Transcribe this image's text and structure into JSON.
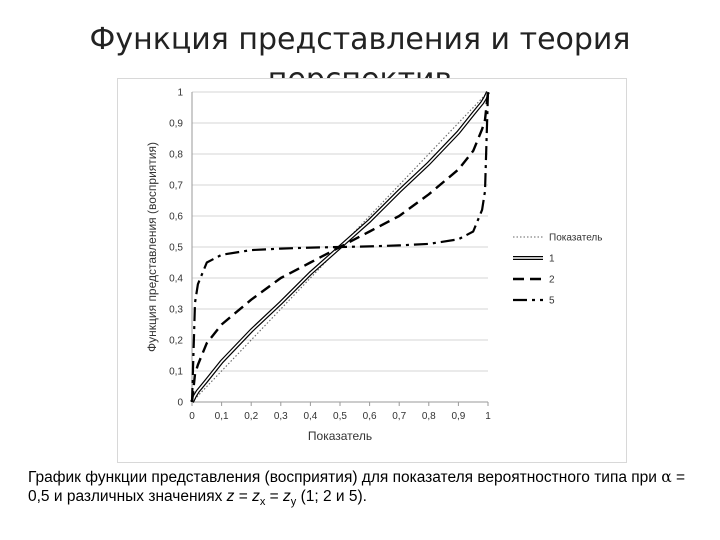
{
  "slide": {
    "title_line1": "Функция представления и теория",
    "title_line2": "перспектив"
  },
  "caption": {
    "part1": "График функции представления (восприятия) для показателя вероятностного типа при ",
    "alpha_symbol": "α",
    "part2": " = 0,5 и различных значениях ",
    "z": "z",
    "eq1": " = ",
    "zx_base": "z",
    "zx_sub": "x",
    "eq2": " = ",
    "zy_base": "z",
    "zy_sub": "y",
    "part3": " (1; 2 и 5)."
  },
  "chart_data": {
    "type": "line",
    "title": "",
    "xlabel": "Показатель",
    "ylabel": "Функция представления (восприятия)",
    "xlim": [
      0,
      1
    ],
    "ylim": [
      0,
      1
    ],
    "xticks": [
      "0",
      "0,1",
      "0,2",
      "0,3",
      "0,4",
      "0,5",
      "0,6",
      "0,7",
      "0,8",
      "0,9",
      "1"
    ],
    "yticks": [
      "0",
      "0,1",
      "0,2",
      "0,3",
      "0,4",
      "0,5",
      "0,6",
      "0,7",
      "0,8",
      "0,9",
      "1"
    ],
    "grid": true,
    "legend_position": "right",
    "x": [
      0,
      0.01,
      0.02,
      0.05,
      0.1,
      0.2,
      0.3,
      0.4,
      0.5,
      0.6,
      0.7,
      0.8,
      0.9,
      0.95,
      0.98,
      0.99,
      1
    ],
    "series": [
      {
        "name": "Показатель",
        "style": "dotted",
        "color": "#555555",
        "values": [
          0,
          0.01,
          0.02,
          0.05,
          0.1,
          0.2,
          0.3,
          0.4,
          0.5,
          0.6,
          0.7,
          0.8,
          0.9,
          0.95,
          0.98,
          0.99,
          1
        ]
      },
      {
        "name": "1",
        "style": "double",
        "color": "#000000",
        "values": [
          0,
          0.02,
          0.035,
          0.07,
          0.13,
          0.23,
          0.32,
          0.415,
          0.5,
          0.585,
          0.68,
          0.77,
          0.87,
          0.93,
          0.965,
          0.98,
          1
        ]
      },
      {
        "name": "2",
        "style": "dashed",
        "color": "#000000",
        "values": [
          0,
          0.09,
          0.12,
          0.19,
          0.25,
          0.33,
          0.4,
          0.45,
          0.5,
          0.55,
          0.6,
          0.67,
          0.75,
          0.81,
          0.88,
          0.91,
          1
        ]
      },
      {
        "name": "5",
        "style": "dashdot",
        "color": "#000000",
        "values": [
          0,
          0.32,
          0.38,
          0.45,
          0.475,
          0.49,
          0.495,
          0.498,
          0.5,
          0.502,
          0.505,
          0.51,
          0.525,
          0.55,
          0.62,
          0.68,
          1
        ]
      }
    ]
  }
}
